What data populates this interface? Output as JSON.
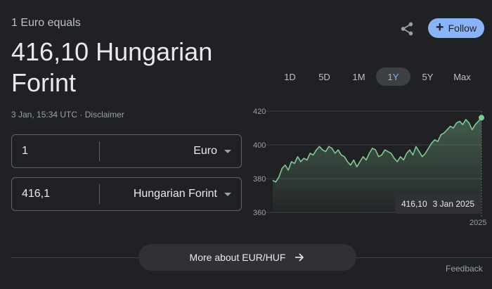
{
  "header": {
    "subtitle": "1 Euro equals",
    "rate_line": "416,10 Hungarian Forint",
    "timestamp": "3 Jan, 15:34 UTC",
    "separator": " · ",
    "disclaimer": "Disclaimer"
  },
  "actions": {
    "share_icon": "share-icon",
    "follow_label": "Follow"
  },
  "converter": {
    "from": {
      "amount": "1",
      "currency": "Euro"
    },
    "to": {
      "amount": "416,1",
      "currency": "Hungarian Forint"
    }
  },
  "ranges": [
    {
      "label": "1D",
      "active": false
    },
    {
      "label": "5D",
      "active": false
    },
    {
      "label": "1M",
      "active": false
    },
    {
      "label": "1Y",
      "active": true
    },
    {
      "label": "5Y",
      "active": false
    },
    {
      "label": "Max",
      "active": false
    }
  ],
  "chart_data": {
    "type": "area",
    "ylim": [
      360,
      420
    ],
    "y_ticks": [
      "420",
      "400",
      "380",
      "360"
    ],
    "x_tick": "2025",
    "grid": true,
    "line_color": "#81c995",
    "tooltip": {
      "value": "416,10",
      "date": "3 Jan 2025"
    },
    "values": [
      379,
      378,
      381,
      386,
      388,
      385,
      390,
      389,
      393,
      390,
      392,
      391,
      395,
      394,
      397,
      399,
      397,
      396,
      399,
      398,
      395,
      397,
      394,
      393,
      390,
      388,
      391,
      387,
      390,
      393,
      391,
      395,
      398,
      397,
      393,
      394,
      397,
      396,
      395,
      392,
      390,
      393,
      391,
      395,
      397,
      394,
      399,
      396,
      393,
      395,
      398,
      401,
      403,
      402,
      406,
      407,
      409,
      411,
      410,
      413,
      414,
      412,
      415,
      413,
      409,
      412,
      414,
      416.1
    ]
  },
  "footer": {
    "more_label": "More about EUR/HUF",
    "feedback": "Feedback"
  }
}
